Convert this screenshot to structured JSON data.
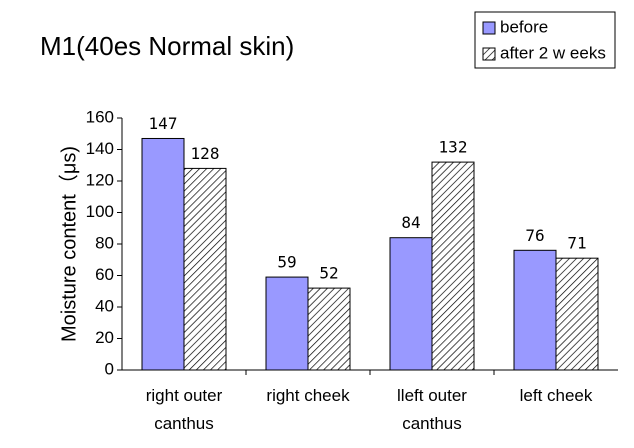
{
  "chart_data": {
    "type": "bar",
    "title": "M1(40es Normal skin)",
    "y_label": "Moisture content（μs)",
    "categories": [
      "right outer canthus",
      "right cheek",
      "lleft outer canthus",
      "left cheek"
    ],
    "series": [
      {
        "name": "before",
        "color": "#9999ff",
        "values": [
          147,
          59,
          84,
          76
        ]
      },
      {
        "name": "after 2 w eeks",
        "color": "hatch",
        "values": [
          128,
          52,
          132,
          71
        ]
      }
    ],
    "ylim": [
      0,
      160
    ],
    "yticks": [
      0,
      20,
      40,
      60,
      80,
      100,
      120,
      140,
      160
    ],
    "legend": "upper right"
  }
}
